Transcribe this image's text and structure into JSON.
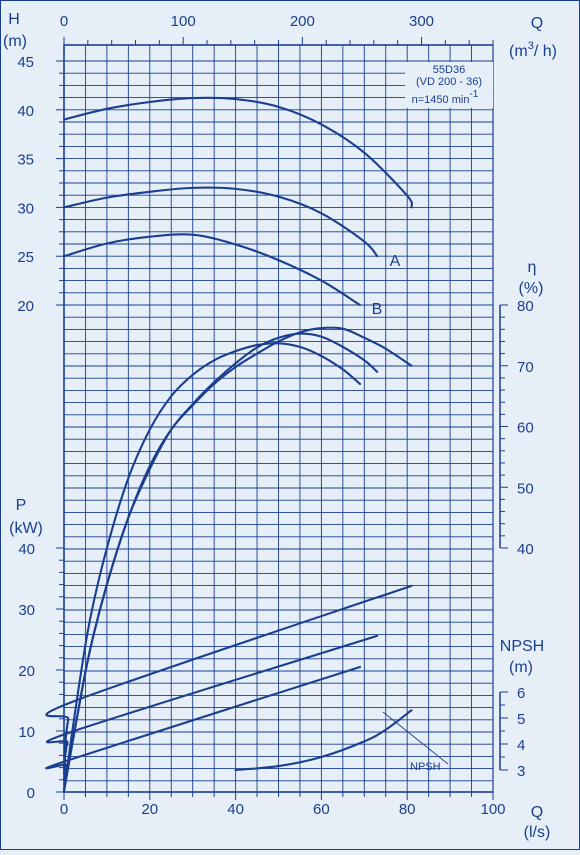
{
  "chart_data": {
    "type": "line",
    "title": [
      "55D36",
      "(VD 200 - 36)",
      "n=1450 min"
    ],
    "title_superscript": "-1",
    "colors": {
      "ink": "#1b3f8f",
      "background": "#e6eef8",
      "grid": "#1b3f8f"
    },
    "grid": true,
    "x_bottom": {
      "label": [
        "Q",
        "(l/s)"
      ],
      "range": [
        0,
        100
      ],
      "ticks": [
        0,
        20,
        40,
        60,
        80,
        100
      ]
    },
    "x_top": {
      "label": [
        "Q",
        "(m",
        "3",
        "/ h)"
      ],
      "range": [
        0,
        360
      ],
      "ticks": [
        0,
        100,
        200,
        300
      ]
    },
    "axes": {
      "H": {
        "label": [
          "H",
          "(m)"
        ],
        "range": [
          20,
          45
        ],
        "ticks": [
          20,
          25,
          30,
          35,
          40,
          45
        ]
      },
      "eta": {
        "label": [
          "η",
          "(%)"
        ],
        "range": [
          40,
          80
        ],
        "ticks": [
          40,
          50,
          60,
          70,
          80
        ]
      },
      "P": {
        "label": [
          "P",
          "(kW)"
        ],
        "range": [
          0,
          40
        ],
        "ticks": [
          0,
          10,
          20,
          30,
          40
        ]
      },
      "NPSH": {
        "label": [
          "NPSH",
          "(m)"
        ],
        "range": [
          3,
          6
        ],
        "ticks": [
          3,
          4,
          5,
          6
        ]
      }
    },
    "annotations": {
      "curve_A": "A",
      "curve_B": "B",
      "npsh_label": "NPSH"
    },
    "series": [
      {
        "axis": "H",
        "x": [
          0,
          10,
          20,
          30,
          40,
          50,
          60,
          70,
          80,
          81
        ],
        "y": [
          39,
          40.1,
          40.8,
          41.2,
          41.1,
          40.3,
          38.5,
          35.6,
          31.2,
          30
        ]
      },
      {
        "axis": "H",
        "name": "A",
        "x": [
          0,
          10,
          20,
          30,
          40,
          50,
          60,
          70,
          73
        ],
        "y": [
          30,
          31,
          31.6,
          32,
          31.9,
          31.1,
          29.4,
          26.5,
          25
        ]
      },
      {
        "axis": "H",
        "name": "B",
        "x": [
          0,
          10,
          20,
          30,
          40,
          50,
          60,
          69
        ],
        "y": [
          25,
          26.3,
          27,
          27.2,
          26.2,
          24.6,
          22.5,
          20
        ]
      },
      {
        "axis": "eta",
        "x": [
          0,
          3,
          6,
          10,
          15,
          20,
          25,
          30,
          35,
          40,
          45,
          50,
          55,
          60,
          65,
          70,
          75,
          81
        ],
        "y": [
          0,
          12,
          23,
          34,
          45,
          53.5,
          59.5,
          63.5,
          67,
          69.8,
          72,
          74,
          75.5,
          76.2,
          76.1,
          74.6,
          72.8,
          70
        ]
      },
      {
        "axis": "eta",
        "x": [
          0,
          3,
          6,
          10,
          15,
          20,
          25,
          30,
          35,
          40,
          45,
          50,
          55,
          60,
          65,
          70,
          73
        ],
        "y": [
          0,
          12,
          23,
          34,
          45,
          53,
          59.5,
          63.7,
          67.3,
          70.4,
          73,
          74.6,
          75.3,
          74.8,
          73.1,
          70.9,
          69
        ]
      },
      {
        "axis": "eta",
        "x": [
          0,
          3,
          6,
          10,
          15,
          20,
          25,
          30,
          35,
          40,
          45,
          50,
          55,
          60,
          65,
          69
        ],
        "y": [
          0,
          15,
          28,
          40,
          51.5,
          59.5,
          65,
          68.5,
          70.9,
          72.4,
          73.4,
          73.7,
          73.1,
          71.6,
          69.4,
          67
        ]
      },
      {
        "axis": "P",
        "x": [
          0,
          0.3,
          1,
          2,
          81
        ],
        "y": [
          4,
          8,
          12,
          14.8,
          33.8
        ]
      },
      {
        "axis": "P",
        "x": [
          0,
          0.3,
          0.8,
          1.5,
          73
        ],
        "y": [
          3,
          6,
          8.2,
          9.8,
          25.6
        ]
      },
      {
        "axis": "P",
        "x": [
          0,
          0.3,
          0.6,
          1,
          69
        ],
        "y": [
          2,
          3.5,
          4.5,
          5.2,
          20.5
        ]
      },
      {
        "axis": "NPSH",
        "x": [
          40,
          50,
          60,
          70,
          75,
          81
        ],
        "y": [
          3.0,
          3.15,
          3.5,
          4.1,
          4.55,
          5.3
        ]
      }
    ]
  }
}
